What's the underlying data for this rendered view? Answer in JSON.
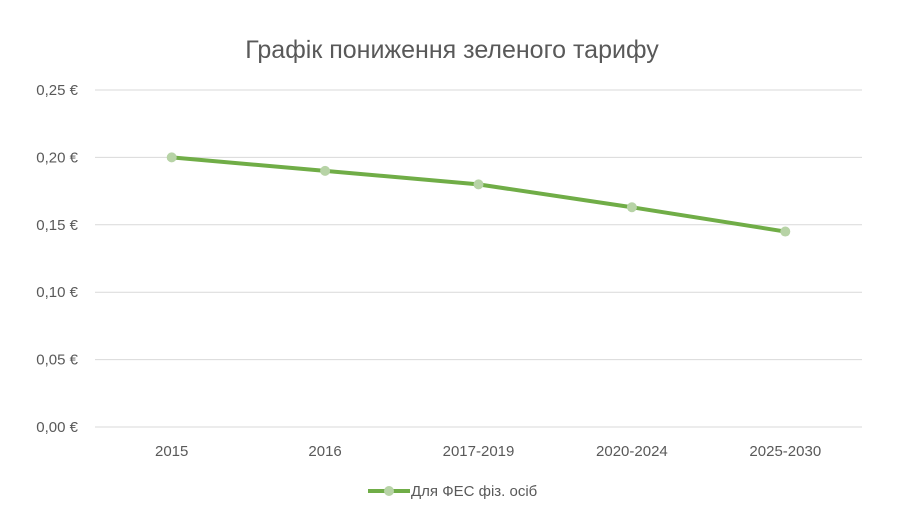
{
  "chart_data": {
    "type": "line",
    "title": "Графік пониження зеленого тарифу",
    "xlabel": "",
    "ylabel": "",
    "categories": [
      "2015",
      "2016",
      "2017-2019",
      "2020-2024",
      "2025-2030"
    ],
    "series": [
      {
        "name": "Для ФЕС фіз. осіб",
        "values": [
          0.2,
          0.19,
          0.18,
          0.163,
          0.145
        ],
        "color": "#70ad47",
        "marker_color": "#b7d3a6"
      }
    ],
    "ylim": [
      0,
      0.25
    ],
    "yticks": [
      0,
      0.05,
      0.1,
      0.15,
      0.2,
      0.25
    ],
    "ytick_labels": [
      "0,00 €",
      "0,05 €",
      "0,10 €",
      "0,15 €",
      "0,20 €",
      "0,25 €"
    ],
    "grid": true,
    "grid_color": "#d9d9d9",
    "legend": "bottom"
  }
}
